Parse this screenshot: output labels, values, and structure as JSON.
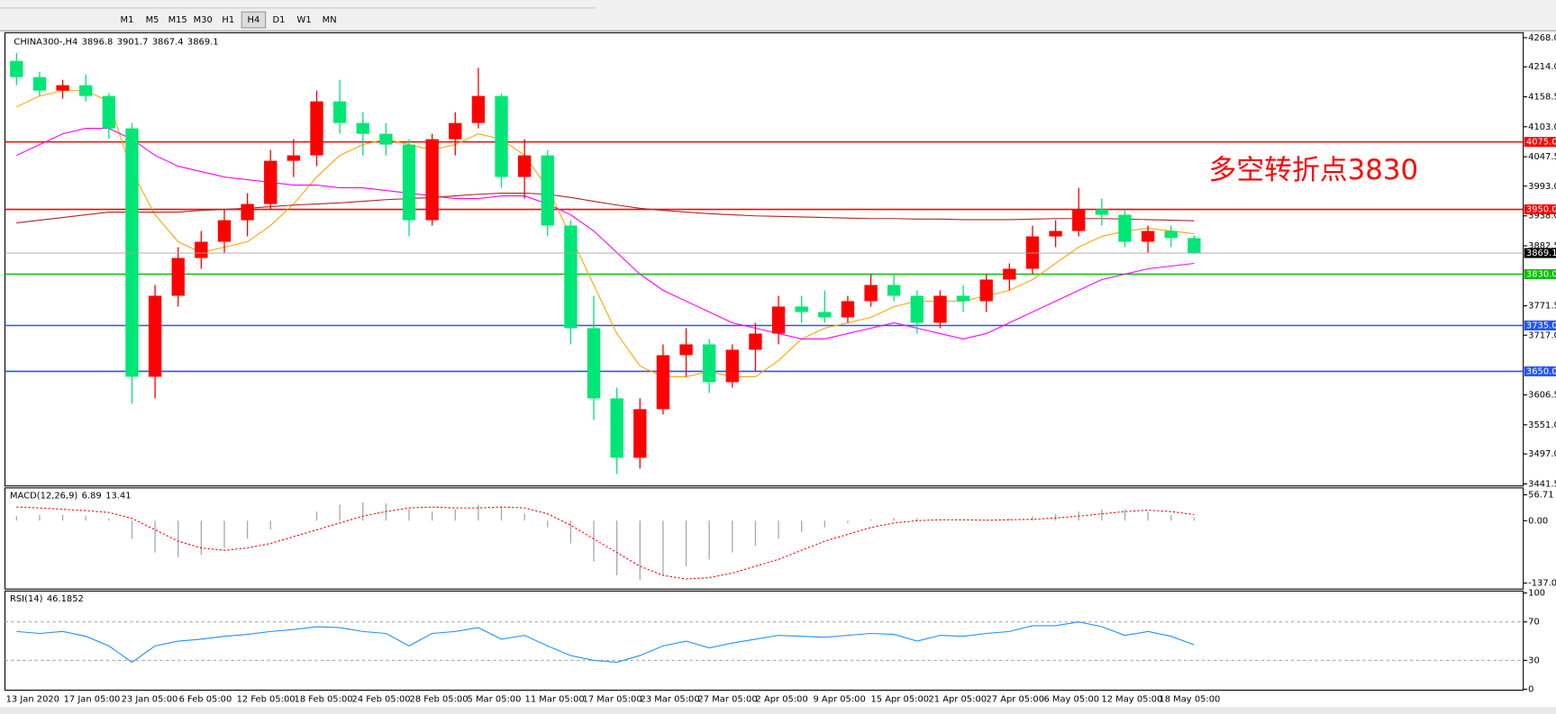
{
  "toolbar": {
    "timeframes": [
      "M1",
      "M5",
      "M15",
      "M30",
      "H1",
      "H4",
      "D1",
      "W1",
      "MN"
    ],
    "active_index": 5
  },
  "chart_data": [
    {
      "type": "candlestick",
      "symbol": "CHINA300-,H4",
      "up_color": "#ff0000",
      "down_color": "#00e676",
      "candles": [
        [
          4225,
          4240,
          4180,
          4195
        ],
        [
          4195,
          4205,
          4160,
          4170
        ],
        [
          4170,
          4190,
          4155,
          4180
        ],
        [
          4180,
          4200,
          4150,
          4160
        ],
        [
          4160,
          4165,
          4080,
          4100
        ],
        [
          4100,
          4110,
          3590,
          3640
        ],
        [
          3640,
          3810,
          3600,
          3790
        ],
        [
          3790,
          3880,
          3770,
          3860
        ],
        [
          3860,
          3910,
          3840,
          3890
        ],
        [
          3890,
          3950,
          3870,
          3930
        ],
        [
          3930,
          3980,
          3900,
          3960
        ],
        [
          3960,
          4060,
          3950,
          4040
        ],
        [
          4040,
          4080,
          4010,
          4050
        ],
        [
          4050,
          4170,
          4030,
          4150
        ],
        [
          4150,
          4190,
          4090,
          4110
        ],
        [
          4110,
          4130,
          4050,
          4090
        ],
        [
          4090,
          4110,
          4050,
          4070
        ],
        [
          4070,
          4080,
          3900,
          3930
        ],
        [
          3930,
          4090,
          3920,
          4080
        ],
        [
          4080,
          4130,
          4050,
          4110
        ],
        [
          4110,
          4212,
          4100,
          4160
        ],
        [
          4160,
          4165,
          3990,
          4010
        ],
        [
          4010,
          4080,
          3970,
          4050
        ],
        [
          4050,
          4060,
          3900,
          3920
        ],
        [
          3920,
          3930,
          3700,
          3730
        ],
        [
          3730,
          3790,
          3560,
          3600
        ],
        [
          3600,
          3620,
          3460,
          3490
        ],
        [
          3490,
          3600,
          3470,
          3580
        ],
        [
          3580,
          3700,
          3570,
          3680
        ],
        [
          3680,
          3730,
          3640,
          3700
        ],
        [
          3700,
          3710,
          3610,
          3630
        ],
        [
          3630,
          3700,
          3620,
          3690
        ],
        [
          3690,
          3740,
          3650,
          3720
        ],
        [
          3720,
          3790,
          3700,
          3770
        ],
        [
          3770,
          3790,
          3740,
          3760
        ],
        [
          3760,
          3800,
          3740,
          3750
        ],
        [
          3750,
          3790,
          3740,
          3780
        ],
        [
          3780,
          3830,
          3770,
          3810
        ],
        [
          3810,
          3830,
          3780,
          3790
        ],
        [
          3790,
          3800,
          3720,
          3740
        ],
        [
          3740,
          3800,
          3730,
          3790
        ],
        [
          3790,
          3810,
          3760,
          3780
        ],
        [
          3780,
          3830,
          3760,
          3820
        ],
        [
          3820,
          3850,
          3800,
          3840
        ],
        [
          3840,
          3920,
          3830,
          3900
        ],
        [
          3900,
          3930,
          3880,
          3910
        ],
        [
          3910,
          3990,
          3900,
          3950
        ],
        [
          3950,
          3970,
          3920,
          3940
        ],
        [
          3940,
          3950,
          3880,
          3890
        ],
        [
          3890,
          3920,
          3870,
          3910
        ],
        [
          3910,
          3920,
          3880,
          3897
        ],
        [
          3896.8,
          3901.7,
          3867.4,
          3869.1
        ]
      ],
      "moving_averages": [
        {
          "color": "#ffa500",
          "values": [
            4140,
            4160,
            4170,
            4170,
            4150,
            4020,
            3940,
            3890,
            3870,
            3880,
            3890,
            3920,
            3960,
            4010,
            4050,
            4070,
            4080,
            4070,
            4060,
            4070,
            4090,
            4080,
            4050,
            3990,
            3900,
            3810,
            3720,
            3660,
            3640,
            3640,
            3650,
            3640,
            3640,
            3670,
            3710,
            3730,
            3740,
            3750,
            3770,
            3780,
            3780,
            3780,
            3790,
            3800,
            3820,
            3850,
            3880,
            3900,
            3910,
            3915,
            3910,
            3905
          ]
        },
        {
          "color": "#ff00ff",
          "values": [
            4050,
            4070,
            4090,
            4100,
            4100,
            4080,
            4050,
            4030,
            4020,
            4010,
            4005,
            4000,
            3995,
            3995,
            3990,
            3990,
            3985,
            3980,
            3975,
            3970,
            3970,
            3975,
            3975,
            3960,
            3940,
            3910,
            3870,
            3830,
            3800,
            3780,
            3760,
            3740,
            3730,
            3720,
            3710,
            3710,
            3720,
            3730,
            3740,
            3730,
            3720,
            3710,
            3720,
            3740,
            3760,
            3780,
            3800,
            3820,
            3830,
            3840,
            3845,
            3850
          ]
        },
        {
          "color": "#b22222",
          "values": [
            3925,
            3930,
            3935,
            3940,
            3945,
            3945,
            3945,
            3945,
            3948,
            3950,
            3952,
            3955,
            3958,
            3960,
            3962,
            3965,
            3968,
            3970,
            3972,
            3975,
            3978,
            3980,
            3980,
            3978,
            3972,
            3965,
            3958,
            3952,
            3948,
            3945,
            3942,
            3940,
            3938,
            3937,
            3936,
            3935,
            3934,
            3933,
            3933,
            3932,
            3932,
            3931,
            3931,
            3931,
            3932,
            3933,
            3933,
            3933,
            3932,
            3931,
            3930,
            3929
          ]
        }
      ],
      "levels": [
        {
          "value": 4075,
          "label": "4075.0",
          "color": "#ff0000"
        },
        {
          "value": 3950,
          "label": "3950.0",
          "color": "#ff0000"
        },
        {
          "value": 3830,
          "label": "3830.0",
          "color": "#00c000"
        },
        {
          "value": 3735,
          "label": "3735.0",
          "color": "#2255ff"
        },
        {
          "value": 3650,
          "label": "3650.0",
          "color": "#2255ff"
        }
      ],
      "annotation": {
        "text": "多空转折点3830",
        "color": "#ff0000"
      },
      "ylim": [
        3441.5,
        4268
      ],
      "yticks": [
        {
          "value": 4268,
          "label": "4268.0"
        },
        {
          "value": 4214,
          "label": "4214.0"
        },
        4158.5,
        {
          "value": 4103,
          "label": "4103.0"
        },
        4047.5,
        {
          "value": 3993,
          "label": "3993.0"
        },
        {
          "value": 3938,
          "label": "3938.0"
        },
        3882.5,
        3771.5,
        {
          "value": 3717,
          "label": "3717.0"
        },
        3606.5,
        {
          "value": 3551,
          "label": "3551.0"
        },
        {
          "value": 3497,
          "label": "3497.0"
        },
        3441.5
      ],
      "x_labels": [
        "13 Jan 2020",
        "17 Jan 05:00",
        "23 Jan 05:00",
        "6 Feb 05:00",
        "12 Feb 05:00",
        "18 Feb 05:00",
        "24 Feb 05:00",
        "28 Feb 05:00",
        "5 Mar 05:00",
        "11 Mar 05:00",
        "17 Mar 05:00",
        "23 Mar 05:00",
        "27 Mar 05:00",
        "2 Apr 05:00",
        "9 Apr 05:00",
        "15 Apr 05:00",
        "21 Apr 05:00",
        "27 Apr 05:00",
        "6 May 05:00",
        "12 May 05:00",
        "18 May 05:00"
      ]
    },
    {
      "type": "macd",
      "label": "MACD(12,26,9)",
      "series": [
        {
          "color": "#a8a8a8",
          "values": [
            10,
            12,
            13,
            10,
            5,
            -40,
            -70,
            -80,
            -75,
            -60,
            -40,
            -20,
            0,
            20,
            35,
            40,
            38,
            25,
            20,
            25,
            35,
            30,
            15,
            -15,
            -50,
            -90,
            -120,
            -130,
            -120,
            -100,
            -85,
            -70,
            -55,
            -40,
            -25,
            -15,
            -5,
            3,
            6,
            5,
            2,
            0,
            2,
            5,
            10,
            15,
            20,
            25,
            25,
            20,
            12,
            6.89
          ]
        },
        {
          "color": "#ff0000",
          "values": [
            30,
            28,
            25,
            22,
            18,
            5,
            -20,
            -45,
            -60,
            -65,
            -60,
            -50,
            -35,
            -20,
            -5,
            10,
            20,
            28,
            30,
            28,
            28,
            30,
            28,
            15,
            -10,
            -40,
            -70,
            -100,
            -120,
            -128,
            -125,
            -115,
            -100,
            -85,
            -65,
            -45,
            -30,
            -15,
            -5,
            0,
            2,
            2,
            1,
            2,
            3,
            6,
            10,
            15,
            20,
            23,
            20,
            13.41
          ]
        }
      ],
      "ylim": [
        -137.01,
        56.71
      ],
      "yticks": [
        56.71,
        {
          "value": 0,
          "label": "0.00"
        },
        -137.01
      ]
    },
    {
      "type": "rsi",
      "label": "RSI(14)",
      "color": "#1e90ff",
      "values": [
        60,
        58,
        60,
        55,
        45,
        28,
        45,
        50,
        52,
        55,
        57,
        60,
        62,
        65,
        64,
        60,
        58,
        45,
        58,
        60,
        64,
        52,
        56,
        45,
        35,
        30,
        28,
        35,
        45,
        50,
        43,
        48,
        52,
        56,
        55,
        54,
        56,
        58,
        57,
        50,
        56,
        55,
        58,
        60,
        66,
        66,
        70,
        65,
        56,
        60,
        55,
        46.1852
      ],
      "ylim": [
        0,
        100
      ],
      "yticks": [
        100,
        70,
        30,
        0
      ]
    }
  ]
}
